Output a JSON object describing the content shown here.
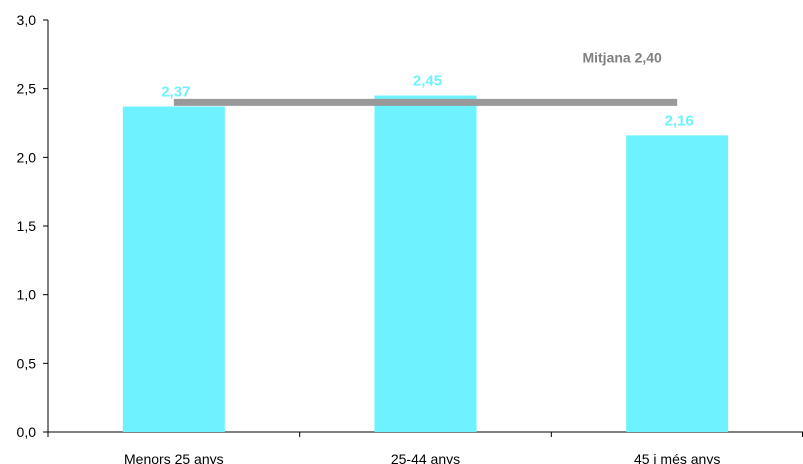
{
  "chart_data": {
    "type": "bar",
    "categories": [
      "Menors 25 anys",
      "25-44 anys",
      "45 i més anys"
    ],
    "values": [
      2.37,
      2.45,
      2.16
    ],
    "data_labels": [
      "2,37",
      "2,45",
      "2,16"
    ],
    "ylim": [
      0,
      3
    ],
    "yticks": [
      0,
      0.5,
      1.0,
      1.5,
      2.0,
      2.5,
      3.0
    ],
    "ytick_labels": [
      "0,0",
      "0,5",
      "1,0",
      "1,5",
      "2,0",
      "2,5",
      "3,0"
    ],
    "grid": false,
    "reference_line": {
      "value": 2.4,
      "label": "Mitjana 2,40"
    },
    "colors": {
      "bar": "#6EF2FF",
      "data_label": "#6EF2FF",
      "reference_line": "#999999",
      "axis": "#000000"
    }
  }
}
